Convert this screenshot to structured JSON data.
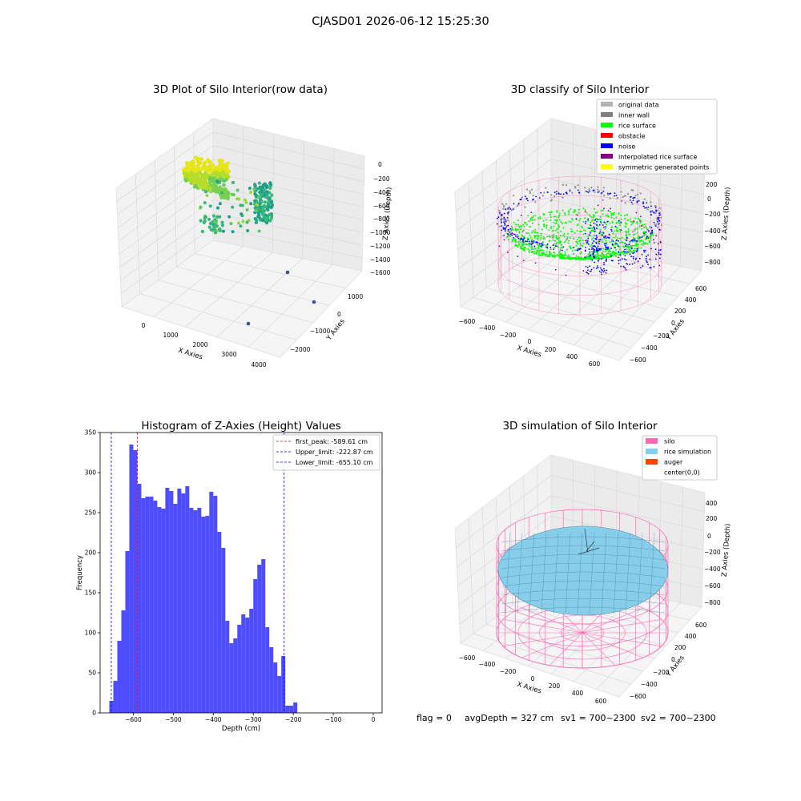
{
  "figure": {
    "suptitle": "CJASD01 2026-06-12 15:25:30"
  },
  "colors": {
    "grid": "#d9d9d9",
    "pane": "#f2f2f2",
    "bar": "#4d4dff",
    "first_peak": "#ff0000",
    "limit": "#0000ff",
    "green": "#00ff00",
    "pink": "#ff69b4",
    "sky": "#87ceeb"
  },
  "chart_data": [
    {
      "type": "scatter",
      "projection": "3d",
      "title": "3D Plot of Silo Interior(row data)",
      "xlabel": "X Axies",
      "ylabel": "Y Axies",
      "zlabel": "Z Axies (Depth)",
      "x_ticks": [
        "0",
        "1000",
        "2000",
        "3000",
        "4000"
      ],
      "y_ticks": [
        "−2000",
        "−1000",
        "0",
        "1000"
      ],
      "z_ticks": [
        "0",
        "−200",
        "−400",
        "−600",
        "−800",
        "−1000",
        "−1200",
        "−1400",
        "−1600"
      ],
      "outliers": [
        {
          "x": 4000,
          "y": 500,
          "z": -1500
        },
        {
          "x": 4000,
          "y": -500,
          "z": -1500
        },
        {
          "x": 3000,
          "y": -2000,
          "z": -1500
        }
      ],
      "colormap": "viridis",
      "grid": true
    },
    {
      "type": "scatter",
      "projection": "3d",
      "title": "3D classify of Silo Interior",
      "xlabel": "X Axies",
      "ylabel": "Y Axies",
      "zlabel": "Z Axies (Depth)",
      "x_ticks": [
        "−600",
        "−400",
        "−200",
        "0",
        "200",
        "400",
        "600"
      ],
      "y_ticks": [
        "−600",
        "−400",
        "−200",
        "0",
        "200",
        "400",
        "600"
      ],
      "z_ticks": [
        "200",
        "0",
        "−200",
        "−400",
        "−600",
        "−800"
      ],
      "legend": [
        {
          "label": "original data",
          "color": "#b3b3b3"
        },
        {
          "label": "inner wall",
          "color": "#808080"
        },
        {
          "label": "rice surface",
          "color": "#00ff00"
        },
        {
          "label": "obstacle",
          "color": "#ff0000"
        },
        {
          "label": "noise",
          "color": "#0000ff"
        },
        {
          "label": "interpolated rice surface",
          "color": "#800080"
        },
        {
          "label": "symmetric generated points",
          "color": "#ffff00"
        }
      ],
      "legend_loc": "upper right",
      "grid": true
    },
    {
      "type": "bar",
      "title": "Histogram of Z-Axies (Height) Values",
      "xlabel": "Depth (cm)",
      "ylabel": "Frequency",
      "xlim": [
        -683,
        22
      ],
      "ylim": [
        0,
        350
      ],
      "x_ticks": [
        -600,
        -500,
        -400,
        -300,
        -200,
        -100,
        0
      ],
      "x_tick_labels": [
        "−600",
        "−500",
        "−400",
        "−300",
        "−200",
        "−100",
        "0"
      ],
      "y_ticks": [
        0,
        50,
        100,
        150,
        200,
        250,
        300,
        350
      ],
      "bin_start": -660,
      "bin_width": 10,
      "values": [
        15,
        40,
        90,
        128,
        202,
        335,
        328,
        286,
        268,
        270,
        270,
        265,
        257,
        255,
        281,
        277,
        261,
        280,
        274,
        283,
        256,
        253,
        256,
        245,
        246,
        276,
        271,
        226,
        206,
        115,
        87,
        93,
        110,
        123,
        119,
        130,
        167,
        185,
        192,
        107,
        82,
        63,
        46,
        71,
        9,
        9,
        13
      ],
      "vlines": [
        {
          "value": -589.61,
          "label": "first_peak: -589.61 cm",
          "color": "#ff0000"
        },
        {
          "value": -222.87,
          "label": "Upper_limit: -222.87 cm",
          "color": "#0000ff"
        },
        {
          "value": -655.1,
          "label": "Lower_limit: -655.10 cm",
          "color": "#0000ff"
        }
      ],
      "legend_loc": "upper right"
    },
    {
      "type": "surface",
      "projection": "3d",
      "title": "3D simulation of Silo Interior",
      "xlabel": "X Axies",
      "ylabel": "Y Axies",
      "zlabel": "Z Axies (Depth)",
      "x_ticks": [
        "−600",
        "−400",
        "−200",
        "0",
        "200",
        "400",
        "600"
      ],
      "y_ticks": [
        "−600",
        "−400",
        "−200",
        "0",
        "200",
        "400",
        "600"
      ],
      "z_ticks": [
        "400",
        "200",
        "0",
        "−200",
        "−400",
        "−600",
        "−800"
      ],
      "legend": [
        {
          "label": "silo",
          "color": "#ff69b4"
        },
        {
          "label": "rice simulation",
          "color": "#87ceeb"
        },
        {
          "label": "auger",
          "color": "#ff4500"
        },
        {
          "label": "center(0,0)",
          "color": ""
        }
      ],
      "legend_loc": "upper right",
      "grid": true
    }
  ],
  "status_line": {
    "flag": "flag = 0",
    "avg_depth": "avgDepth = 327 cm",
    "sv1": "sv1 = 700~2300",
    "sv2": "sv2 = 700~2300"
  }
}
